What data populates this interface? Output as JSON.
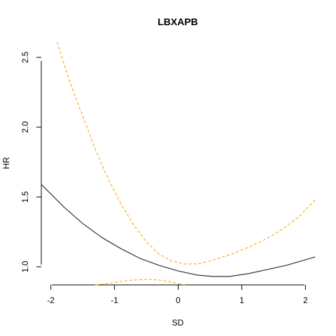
{
  "chart_data": {
    "type": "line",
    "title": "LBXAPB",
    "xlabel": "SD",
    "ylabel": "HR",
    "xlim": [
      -2.15,
      2.15
    ],
    "ylim": [
      0.87,
      2.6
    ],
    "x_ticks": [
      -2,
      -1,
      0,
      1,
      2
    ],
    "x_tick_labels": [
      "-2",
      "-1",
      "0",
      "1",
      "2"
    ],
    "y_ticks": [
      1.0,
      1.5,
      2.0,
      2.5
    ],
    "y_tick_labels": [
      "1.0",
      "1.5",
      "2.0",
      "2.5"
    ],
    "grid": false,
    "legend": "none",
    "series": [
      {
        "style": "solid",
        "color": "#333333",
        "x": [
          -2.15,
          -1.8,
          -1.5,
          -1.2,
          -0.9,
          -0.6,
          -0.3,
          0.0,
          0.3,
          0.55,
          0.8,
          1.1,
          1.4,
          1.7,
          2.0,
          2.15
        ],
        "y": [
          1.59,
          1.43,
          1.31,
          1.21,
          1.13,
          1.06,
          1.01,
          0.97,
          0.94,
          0.93,
          0.93,
          0.95,
          0.98,
          1.01,
          1.05,
          1.07
        ]
      },
      {
        "style": "dashed",
        "color": "#FFA500",
        "x": [
          -1.9,
          -1.7,
          -1.5,
          -1.3,
          -1.1,
          -0.9,
          -0.7,
          -0.5,
          -0.3,
          -0.1,
          0.1,
          0.3,
          0.5,
          0.7,
          0.9,
          1.1,
          1.3,
          1.5,
          1.7,
          1.9,
          2.15
        ],
        "y": [
          2.61,
          2.32,
          2.08,
          1.84,
          1.63,
          1.45,
          1.3,
          1.18,
          1.09,
          1.04,
          1.02,
          1.02,
          1.04,
          1.07,
          1.1,
          1.14,
          1.18,
          1.23,
          1.29,
          1.36,
          1.48
        ]
      },
      {
        "style": "dashed",
        "color": "#FFA500",
        "x": [
          -1.3,
          -1.1,
          -0.9,
          -0.7,
          -0.5,
          -0.3,
          -0.1,
          0.1
        ],
        "y": [
          0.87,
          0.88,
          0.895,
          0.905,
          0.91,
          0.905,
          0.89,
          0.87
        ]
      }
    ]
  }
}
